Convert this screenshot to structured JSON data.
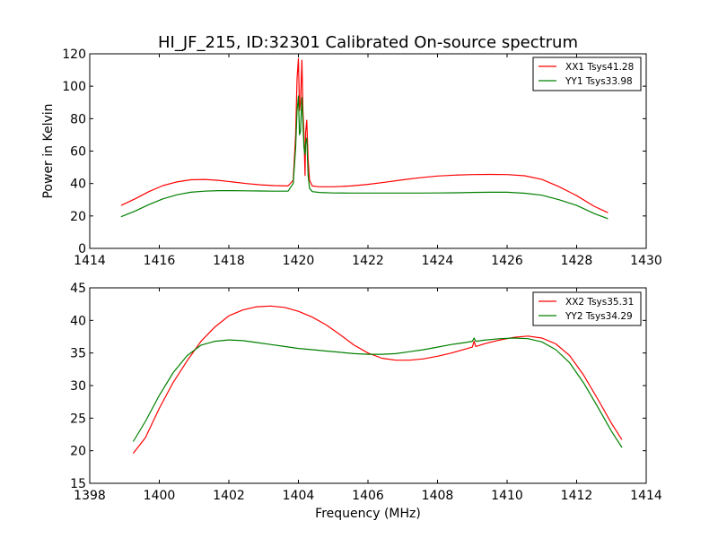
{
  "title": "HI_JF_215, ID:32301 Calibrated On-source spectrum",
  "chart_data": [
    {
      "type": "line",
      "ylabel": "Power in Kelvin",
      "xlabel": "",
      "xlim": [
        1414,
        1430
      ],
      "ylim": [
        0,
        120
      ],
      "xticks": [
        1414,
        1416,
        1418,
        1420,
        1422,
        1424,
        1426,
        1428,
        1430
      ],
      "yticks": [
        0,
        20,
        40,
        60,
        80,
        100,
        120
      ],
      "grid": false,
      "legend_position": "top-right",
      "series": [
        {
          "name": "XX1 Tsys41.28",
          "color": "#ff0000",
          "x": [
            1414.9,
            1415.3,
            1415.7,
            1416.1,
            1416.5,
            1416.9,
            1417.3,
            1417.7,
            1418.1,
            1418.5,
            1418.9,
            1419.3,
            1419.7,
            1419.85,
            1419.92,
            1419.96,
            1420.0,
            1420.03,
            1420.06,
            1420.1,
            1420.13,
            1420.16,
            1420.19,
            1420.21,
            1420.24,
            1420.28,
            1420.32,
            1420.4,
            1420.6,
            1421.0,
            1421.5,
            1422.0,
            1422.5,
            1423.0,
            1423.5,
            1424.0,
            1424.5,
            1425.0,
            1425.5,
            1426.0,
            1426.5,
            1427.0,
            1427.5,
            1428.0,
            1428.5,
            1428.9
          ],
          "y": [
            26.5,
            30.5,
            35.0,
            38.7,
            41.0,
            42.3,
            42.5,
            42.0,
            41.0,
            40.0,
            39.2,
            38.7,
            38.5,
            42,
            70,
            105,
            117,
            85,
            90,
            116,
            85,
            70,
            45,
            72,
            79,
            55,
            42,
            38.5,
            38.0,
            38.0,
            38.5,
            39.5,
            40.8,
            42.3,
            43.6,
            44.6,
            45.2,
            45.5,
            45.6,
            45.5,
            44.8,
            42.5,
            38.0,
            32.5,
            26.0,
            22.0
          ]
        },
        {
          "name": "YY1 Tsys33.98",
          "color": "#008000",
          "x": [
            1414.9,
            1415.3,
            1415.7,
            1416.1,
            1416.5,
            1416.9,
            1417.3,
            1417.7,
            1418.1,
            1418.5,
            1418.9,
            1419.3,
            1419.7,
            1419.85,
            1419.92,
            1419.96,
            1420.0,
            1420.03,
            1420.06,
            1420.1,
            1420.13,
            1420.16,
            1420.19,
            1420.21,
            1420.24,
            1420.28,
            1420.32,
            1420.4,
            1420.6,
            1421.0,
            1421.5,
            1422.0,
            1422.5,
            1423.0,
            1423.5,
            1424.0,
            1424.5,
            1425.0,
            1425.5,
            1426.0,
            1426.5,
            1427.0,
            1427.5,
            1428.0,
            1428.5,
            1428.9
          ],
          "y": [
            19.5,
            23.0,
            27.0,
            30.5,
            33.0,
            34.6,
            35.3,
            35.6,
            35.6,
            35.5,
            35.4,
            35.3,
            35.3,
            40,
            62,
            85,
            94,
            70,
            72,
            93,
            78,
            62,
            58,
            65,
            68,
            45,
            37,
            35.0,
            34.5,
            34.2,
            34.1,
            34.1,
            34.1,
            34.1,
            34.1,
            34.2,
            34.3,
            34.5,
            34.6,
            34.6,
            34.0,
            32.8,
            30.0,
            26.5,
            21.5,
            18.3
          ]
        }
      ]
    },
    {
      "type": "line",
      "ylabel": "",
      "xlabel": "Frequency (MHz)",
      "xlim": [
        1398,
        1414
      ],
      "ylim": [
        15,
        45
      ],
      "xticks": [
        1398,
        1400,
        1402,
        1404,
        1406,
        1408,
        1410,
        1412,
        1414
      ],
      "yticks": [
        15,
        20,
        25,
        30,
        35,
        40,
        45
      ],
      "grid": false,
      "legend_position": "top-right",
      "series": [
        {
          "name": "XX2 Tsys35.31",
          "color": "#ff0000",
          "x": [
            1399.25,
            1399.6,
            1400.0,
            1400.4,
            1400.8,
            1401.2,
            1401.6,
            1402.0,
            1402.4,
            1402.8,
            1403.2,
            1403.6,
            1404.0,
            1404.4,
            1404.8,
            1405.2,
            1405.6,
            1406.0,
            1406.4,
            1406.8,
            1407.2,
            1407.6,
            1408.0,
            1408.4,
            1408.8,
            1409.0,
            1409.05,
            1409.1,
            1409.4,
            1409.8,
            1410.2,
            1410.6,
            1411.0,
            1411.4,
            1411.8,
            1412.2,
            1412.6,
            1413.0,
            1413.3
          ],
          "y": [
            19.6,
            22.0,
            26.5,
            30.5,
            33.8,
            36.8,
            39.0,
            40.7,
            41.6,
            42.1,
            42.2,
            42.0,
            41.4,
            40.5,
            39.3,
            37.8,
            36.2,
            35.0,
            34.2,
            33.9,
            33.9,
            34.1,
            34.5,
            35.0,
            35.6,
            35.9,
            36.8,
            36.0,
            36.5,
            37.0,
            37.4,
            37.6,
            37.3,
            36.4,
            34.6,
            31.6,
            28.0,
            24.2,
            21.7
          ]
        },
        {
          "name": "YY2 Tsys34.29",
          "color": "#008000",
          "x": [
            1399.25,
            1399.6,
            1400.0,
            1400.4,
            1400.8,
            1401.2,
            1401.6,
            1402.0,
            1402.4,
            1402.8,
            1403.2,
            1403.6,
            1404.0,
            1404.4,
            1404.8,
            1405.2,
            1405.6,
            1406.0,
            1406.4,
            1406.8,
            1407.2,
            1407.6,
            1408.0,
            1408.4,
            1408.8,
            1409.0,
            1409.05,
            1409.1,
            1409.4,
            1409.8,
            1410.2,
            1410.6,
            1411.0,
            1411.4,
            1411.8,
            1412.2,
            1412.6,
            1413.0,
            1413.3
          ],
          "y": [
            21.4,
            24.5,
            28.5,
            32.0,
            34.6,
            36.2,
            36.8,
            37.0,
            36.9,
            36.6,
            36.3,
            36.0,
            35.7,
            35.5,
            35.3,
            35.1,
            34.9,
            34.8,
            34.8,
            34.9,
            35.2,
            35.5,
            35.9,
            36.3,
            36.6,
            36.8,
            37.3,
            36.8,
            37.0,
            37.2,
            37.3,
            37.2,
            36.7,
            35.5,
            33.5,
            30.4,
            26.8,
            23.0,
            20.5
          ]
        }
      ]
    }
  ]
}
